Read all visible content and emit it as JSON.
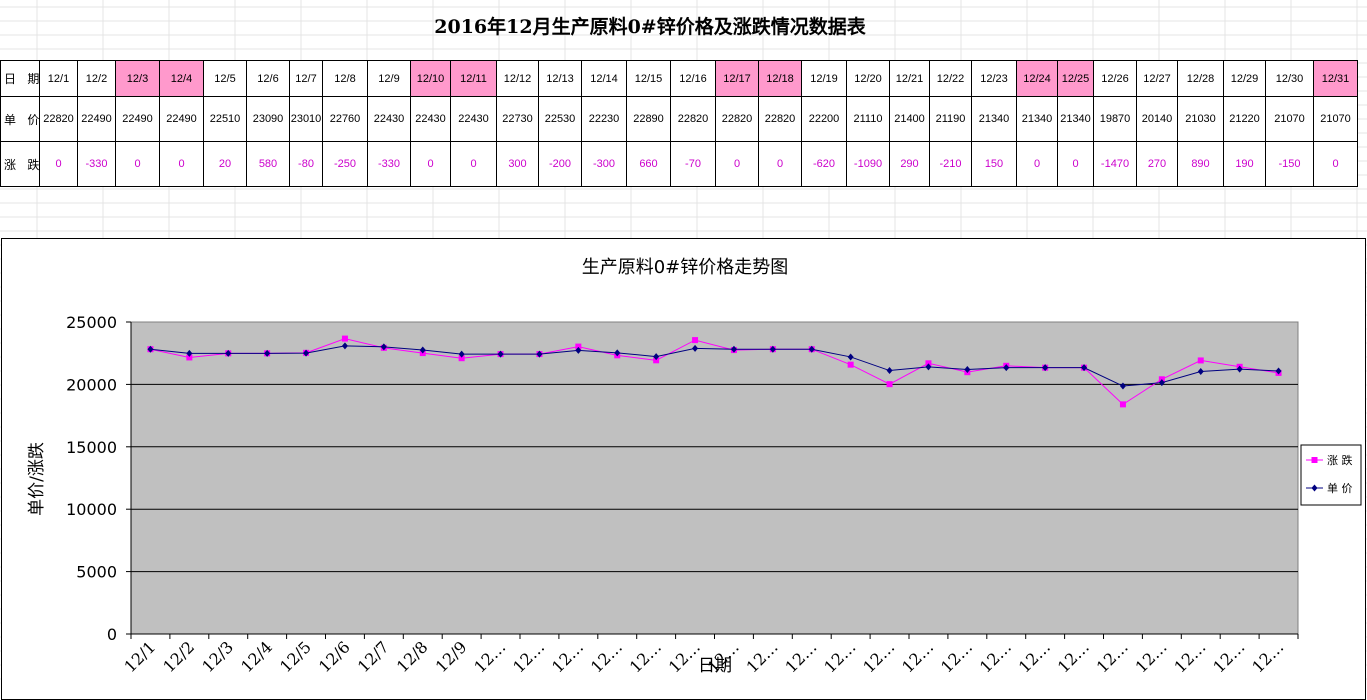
{
  "table": {
    "title": "2016年12月生产原料0#锌价格及涨跌情况数据表",
    "row_labels": {
      "date": "日 期",
      "price": "单 价",
      "change": "涨 跌"
    },
    "dates": [
      "12/1",
      "12/2",
      "12/3",
      "12/4",
      "12/5",
      "12/6",
      "12/7",
      "12/8",
      "12/9",
      "12/10",
      "12/11",
      "12/12",
      "12/13",
      "12/14",
      "12/15",
      "12/16",
      "12/17",
      "12/18",
      "12/19",
      "12/20",
      "12/21",
      "12/22",
      "12/23",
      "12/24",
      "12/25",
      "12/26",
      "12/27",
      "12/28",
      "12/29",
      "12/30",
      "12/31"
    ],
    "prices": [
      "22820",
      "22490",
      "22490",
      "22490",
      "22510",
      "23090",
      "23010",
      "22760",
      "22430",
      "22430",
      "22430",
      "22730",
      "22530",
      "22230",
      "22890",
      "22820",
      "22820",
      "22820",
      "22200",
      "21110",
      "21400",
      "21190",
      "21340",
      "21340",
      "21340",
      "19870",
      "20140",
      "21030",
      "21220",
      "21070",
      "21070"
    ],
    "changes": [
      "0",
      "-330",
      "0",
      "0",
      "20",
      "580",
      "-80",
      "-250",
      "-330",
      "0",
      "0",
      "300",
      "-200",
      "-300",
      "660",
      "-70",
      "0",
      "0",
      "-620",
      "-1090",
      "290",
      "-210",
      "150",
      "0",
      "0",
      "-1470",
      "270",
      "890",
      "190",
      "-150",
      "0"
    ],
    "highlighted_dates": [
      "12/3",
      "12/4",
      "12/10",
      "12/11",
      "12/17",
      "12/18",
      "12/24",
      "12/25",
      "12/31"
    ],
    "colors": {
      "highlight": "#ff99cc",
      "change_text": "#cc00cc"
    }
  },
  "chart_data": {
    "type": "line",
    "title": "生产原料0#锌价格走势图",
    "xlabel": "日期",
    "ylabel": "单价/涨跌",
    "ylim": [
      0,
      25000
    ],
    "yticks": [
      "0",
      "5000",
      "10000",
      "15000",
      "20000",
      "25000"
    ],
    "categories": [
      "12/1",
      "12/2",
      "12/3",
      "12/4",
      "12/5",
      "12/6",
      "12/7",
      "12/8",
      "12/9",
      "12…",
      "12…",
      "12…",
      "12…",
      "12…",
      "12…",
      "12…",
      "12…",
      "12…",
      "12…",
      "12…",
      "12…",
      "12…",
      "12…",
      "12…",
      "12…",
      "12…",
      "12…",
      "12…",
      "12…",
      "12…"
    ],
    "grid": true,
    "legend_position": "right",
    "series": [
      {
        "name": "涨 跌",
        "color": "#ff00ff",
        "marker": "square",
        "values": [
          22820,
          22160,
          22490,
          22490,
          22530,
          23670,
          22930,
          22510,
          22100,
          22430,
          22430,
          23030,
          22330,
          21930,
          23550,
          22750,
          22820,
          22820,
          21580,
          20020,
          21690,
          20980,
          21490,
          21340,
          21340,
          18400,
          20410,
          21920,
          21410,
          20920
        ]
      },
      {
        "name": "单 价",
        "color": "#000080",
        "marker": "diamond",
        "values": [
          22820,
          22490,
          22490,
          22490,
          22510,
          23090,
          23010,
          22760,
          22430,
          22430,
          22430,
          22730,
          22530,
          22230,
          22890,
          22820,
          22820,
          22820,
          22200,
          21110,
          21400,
          21190,
          21340,
          21340,
          21340,
          19870,
          20140,
          21030,
          21220,
          21070
        ]
      }
    ],
    "colors": {
      "plot_bg": "#c0c0c0",
      "gridline": "#000000"
    }
  }
}
